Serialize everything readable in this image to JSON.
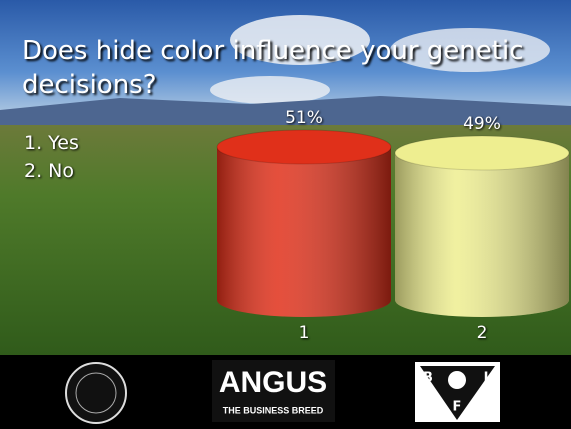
{
  "chart_data": {
    "type": "bar",
    "title": "Does hide color influence your genetic decisions?",
    "options": [
      "1. Yes",
      "2. No"
    ],
    "categories": [
      "1",
      "2"
    ],
    "values": [
      51,
      49
    ],
    "value_labels": [
      "51%",
      "49%"
    ],
    "colors": [
      "#e0301a",
      "#eeee90"
    ]
  },
  "footer": {
    "angus_logo": "ANGUS",
    "angus_tagline": "THE BUSINESS BREED",
    "bif_letters": [
      "B",
      "I",
      "F"
    ]
  }
}
